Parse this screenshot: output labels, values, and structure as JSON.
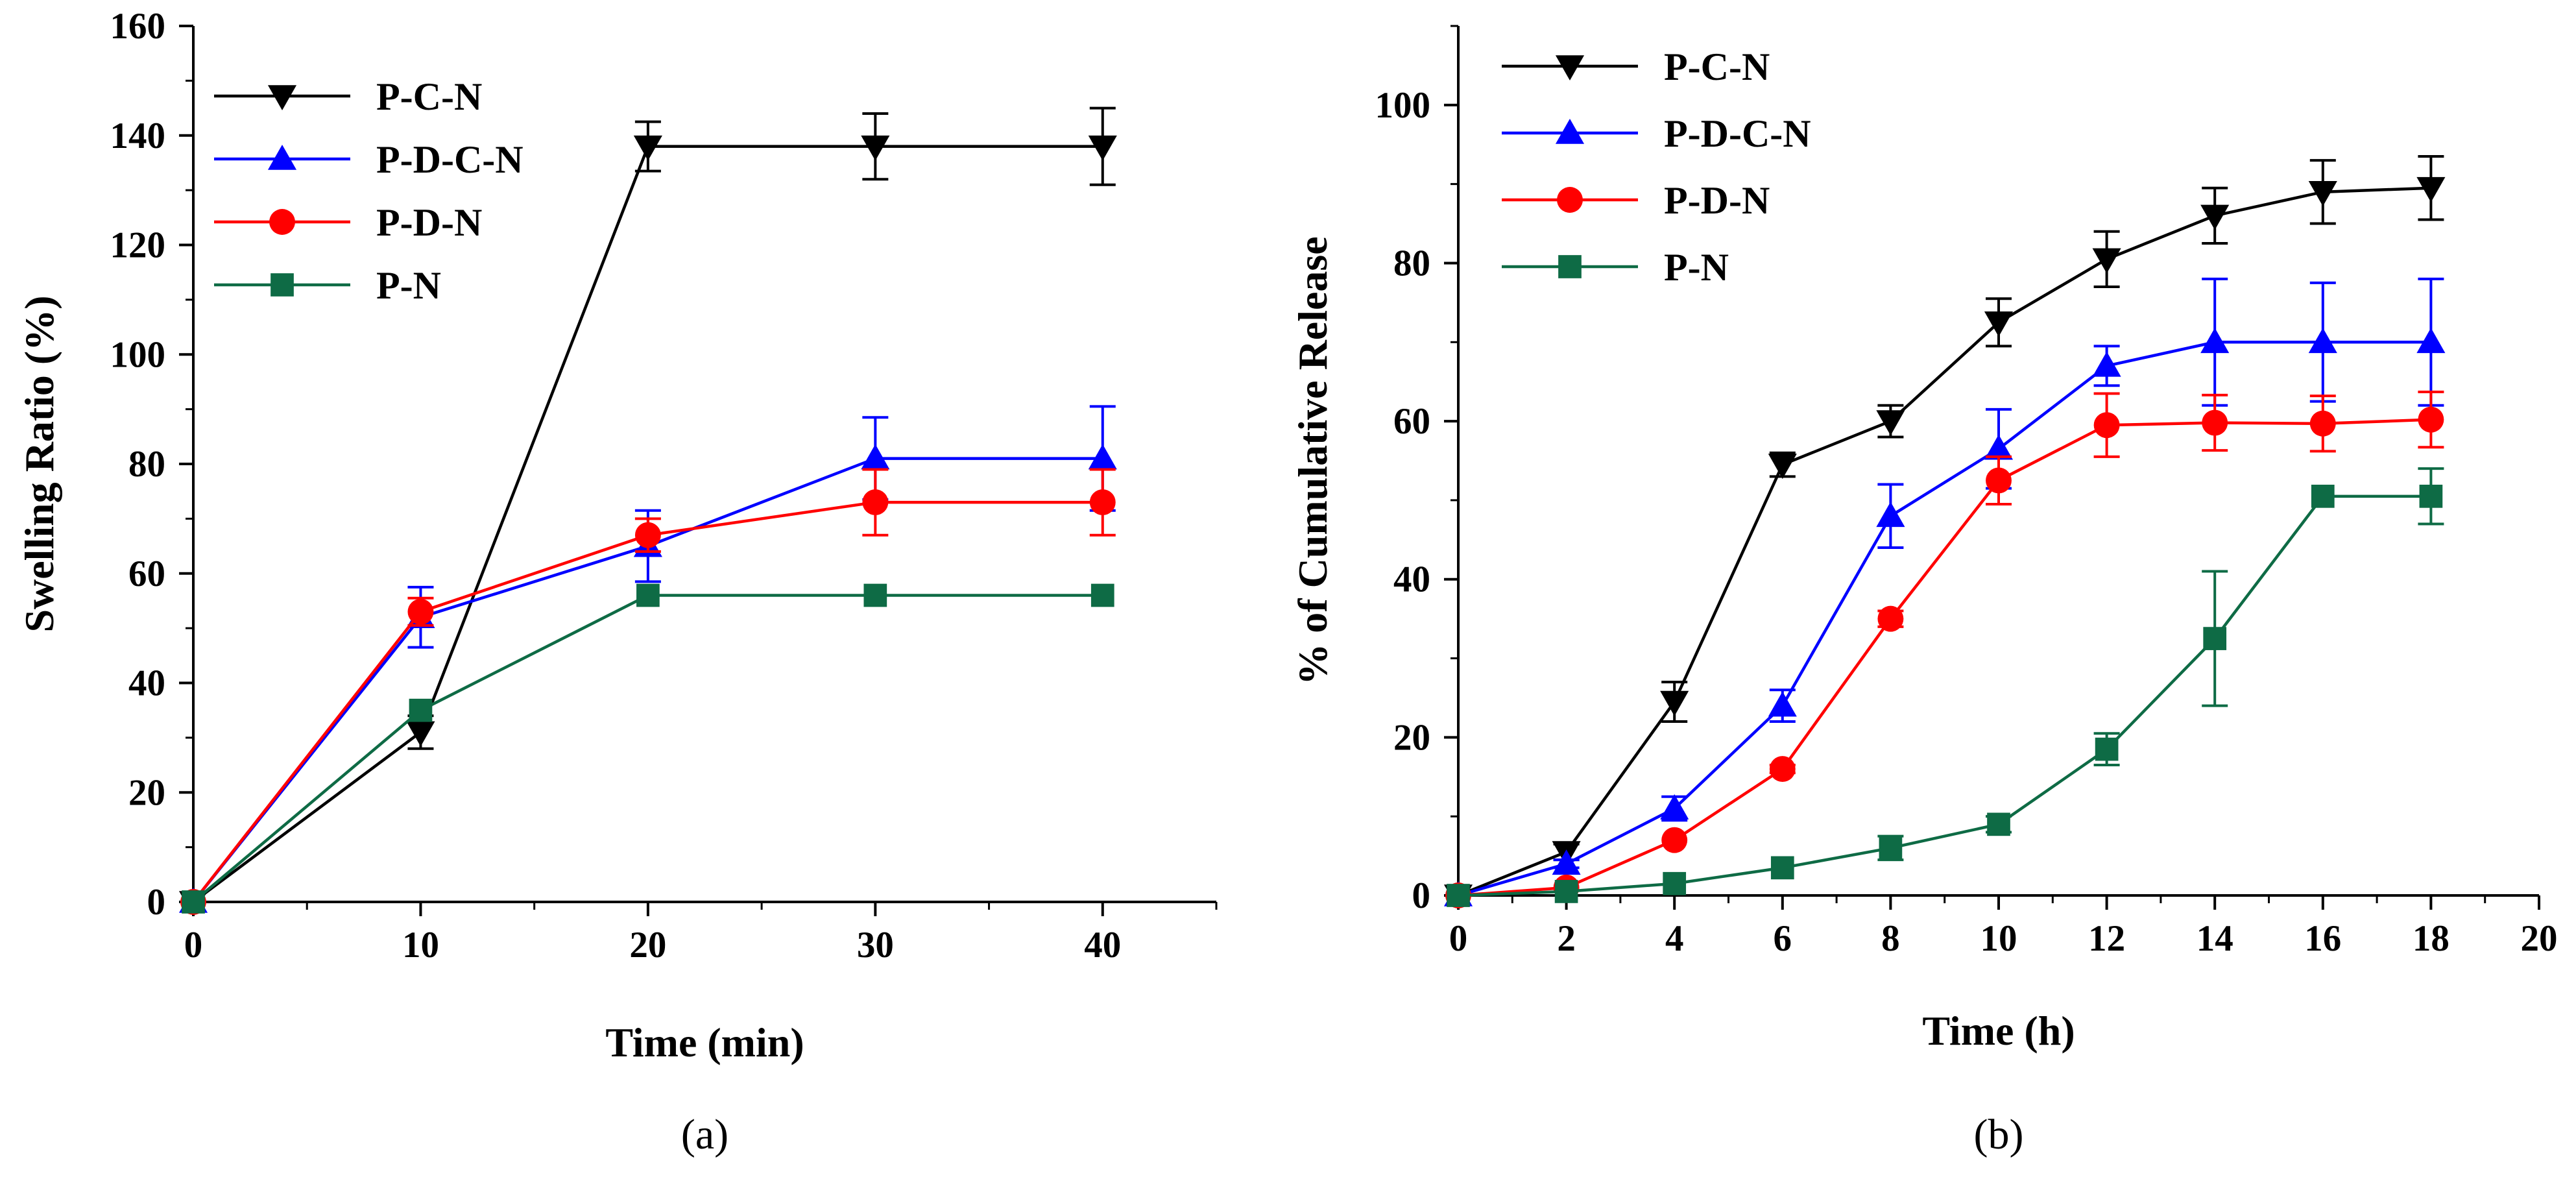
{
  "chart_data": [
    {
      "type": "line",
      "caption": "(a)",
      "xlabel": "Time (min)",
      "ylabel": "Swelling Ratio (%)",
      "xlim": [
        0,
        45
      ],
      "ylim": [
        0,
        160
      ],
      "xticks": [
        0,
        10,
        20,
        30,
        40
      ],
      "yticks": [
        0,
        20,
        40,
        60,
        80,
        100,
        120,
        140,
        160
      ],
      "legend_position": "top-left",
      "series": [
        {
          "name": "P-C-N",
          "color": "#000000",
          "marker": "triangle-down",
          "x": [
            0,
            10,
            20,
            30,
            40
          ],
          "y": [
            0,
            31,
            138,
            138,
            138
          ],
          "err": [
            0,
            3,
            4.5,
            6,
            7
          ]
        },
        {
          "name": "P-D-C-N",
          "color": "#0000FF",
          "marker": "triangle-up",
          "x": [
            0,
            10,
            20,
            30,
            40
          ],
          "y": [
            0,
            52,
            65,
            81,
            81
          ],
          "err": [
            0,
            5.5,
            6.5,
            7.5,
            9.5
          ]
        },
        {
          "name": "P-D-N",
          "color": "#FF0000",
          "marker": "circle",
          "x": [
            0,
            10,
            20,
            30,
            40
          ],
          "y": [
            0,
            53,
            67,
            73,
            73
          ],
          "err": [
            0,
            2.5,
            3,
            6,
            6
          ]
        },
        {
          "name": "P-N",
          "color": "#0E6B45",
          "marker": "square",
          "x": [
            0,
            10,
            20,
            30,
            40
          ],
          "y": [
            0,
            35,
            56,
            56,
            56
          ],
          "err": [
            0,
            0,
            0,
            0,
            0
          ]
        }
      ]
    },
    {
      "type": "line",
      "caption": "(b)",
      "xlabel": "Time (h)",
      "ylabel": "% of Cumulative Release",
      "xlim": [
        0,
        20
      ],
      "ylim": [
        0,
        110
      ],
      "xticks": [
        0,
        2,
        4,
        6,
        8,
        10,
        12,
        14,
        16,
        18,
        20
      ],
      "yticks": [
        0,
        20,
        40,
        60,
        80,
        100
      ],
      "legend_position": "top-left",
      "series": [
        {
          "name": "P-C-N",
          "color": "#000000",
          "marker": "triangle-down",
          "x": [
            0,
            2,
            4,
            6,
            8,
            10,
            12,
            14,
            16,
            18
          ],
          "y": [
            0,
            5.5,
            24.5,
            54.5,
            60,
            72.5,
            80.5,
            86,
            89,
            89.5
          ],
          "err": [
            0,
            1,
            2.5,
            1.5,
            2,
            3,
            3.5,
            3.5,
            4,
            4
          ]
        },
        {
          "name": "P-D-C-N",
          "color": "#0000FF",
          "marker": "triangle-up",
          "x": [
            0,
            2,
            4,
            6,
            8,
            10,
            12,
            14,
            16,
            18
          ],
          "y": [
            0,
            4,
            11,
            24,
            48,
            56.5,
            67,
            70,
            70,
            70
          ],
          "err": [
            0,
            0.5,
            1.5,
            2,
            4,
            5,
            2.5,
            8,
            7.5,
            8
          ]
        },
        {
          "name": "P-D-N",
          "color": "#FF0000",
          "marker": "circle",
          "x": [
            0,
            2,
            4,
            6,
            8,
            10,
            12,
            14,
            16,
            18
          ],
          "y": [
            0,
            1,
            7,
            16,
            35,
            52.5,
            59.5,
            59.8,
            59.7,
            60.2
          ],
          "err": [
            0,
            0,
            0,
            0.5,
            1,
            3,
            4,
            3.5,
            3.5,
            3.5
          ]
        },
        {
          "name": "P-N",
          "color": "#0E6B45",
          "marker": "square",
          "x": [
            0,
            2,
            4,
            6,
            8,
            10,
            12,
            14,
            16,
            18
          ],
          "y": [
            0,
            0.5,
            1.5,
            3.5,
            6,
            9,
            18.5,
            32.5,
            50.5,
            50.5
          ],
          "err": [
            0,
            0,
            0,
            0,
            1.5,
            1,
            2,
            8.5,
            0,
            3.5
          ]
        }
      ]
    }
  ]
}
